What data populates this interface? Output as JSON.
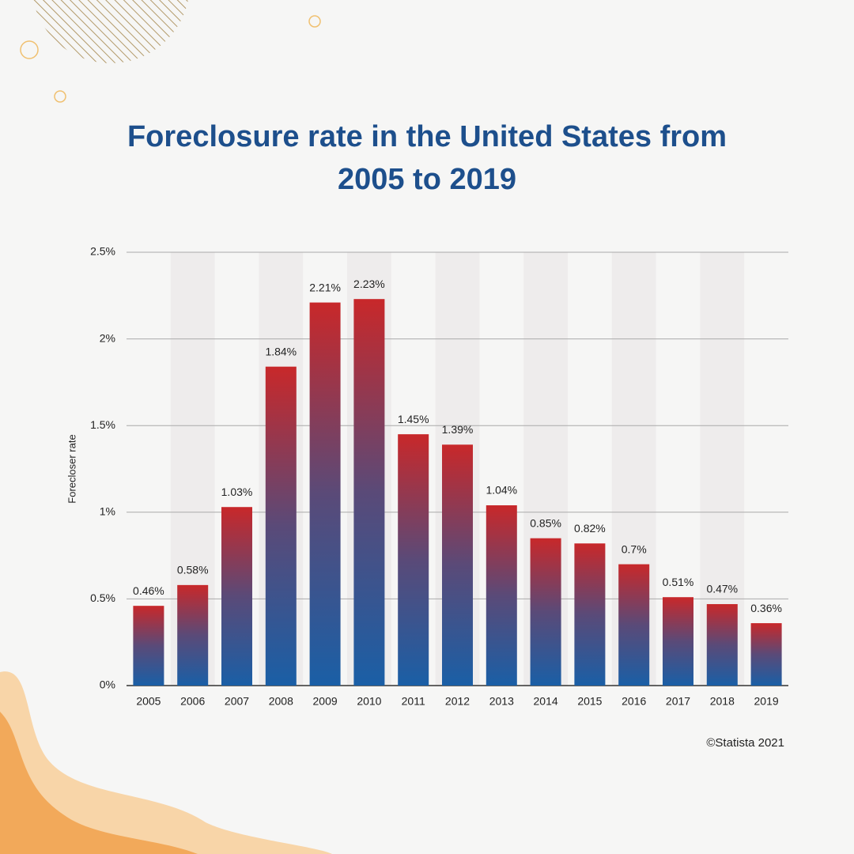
{
  "chart_data": {
    "type": "bar",
    "title": "Foreclosure rate in the United States from 2005 to 2019",
    "y_label": "Forecloser rate",
    "source": "©Statista 2021",
    "categories": [
      "2005",
      "2006",
      "2007",
      "2008",
      "2009",
      "2010",
      "2011",
      "2012",
      "2013",
      "2014",
      "2015",
      "2016",
      "2017",
      "2018",
      "2019"
    ],
    "values": [
      0.46,
      0.58,
      1.03,
      1.84,
      2.21,
      2.23,
      1.45,
      1.39,
      1.04,
      0.85,
      0.82,
      0.7,
      0.51,
      0.47,
      0.36
    ],
    "value_labels": [
      "0.46%",
      "0.58%",
      "1.03%",
      "1.84%",
      "2.21%",
      "2.23%",
      "1.45%",
      "1.39%",
      "1.04%",
      "0.85%",
      "0.82%",
      "0.7%",
      "0.51%",
      "0.47%",
      "0.36%"
    ],
    "color": [
      "#c8282a",
      "#1a5fa6"
    ],
    "ylim": [
      0,
      2.5
    ],
    "yticks": [
      {
        "value": 0,
        "label": "0%"
      },
      {
        "value": 0.5,
        "label": "0.5%"
      },
      {
        "value": 1,
        "label": "1%"
      },
      {
        "value": 1.5,
        "label": "1.5%"
      },
      {
        "value": 2,
        "label": "2%"
      },
      {
        "value": 2.5,
        "label": "2.5%"
      }
    ],
    "grid": true
  }
}
